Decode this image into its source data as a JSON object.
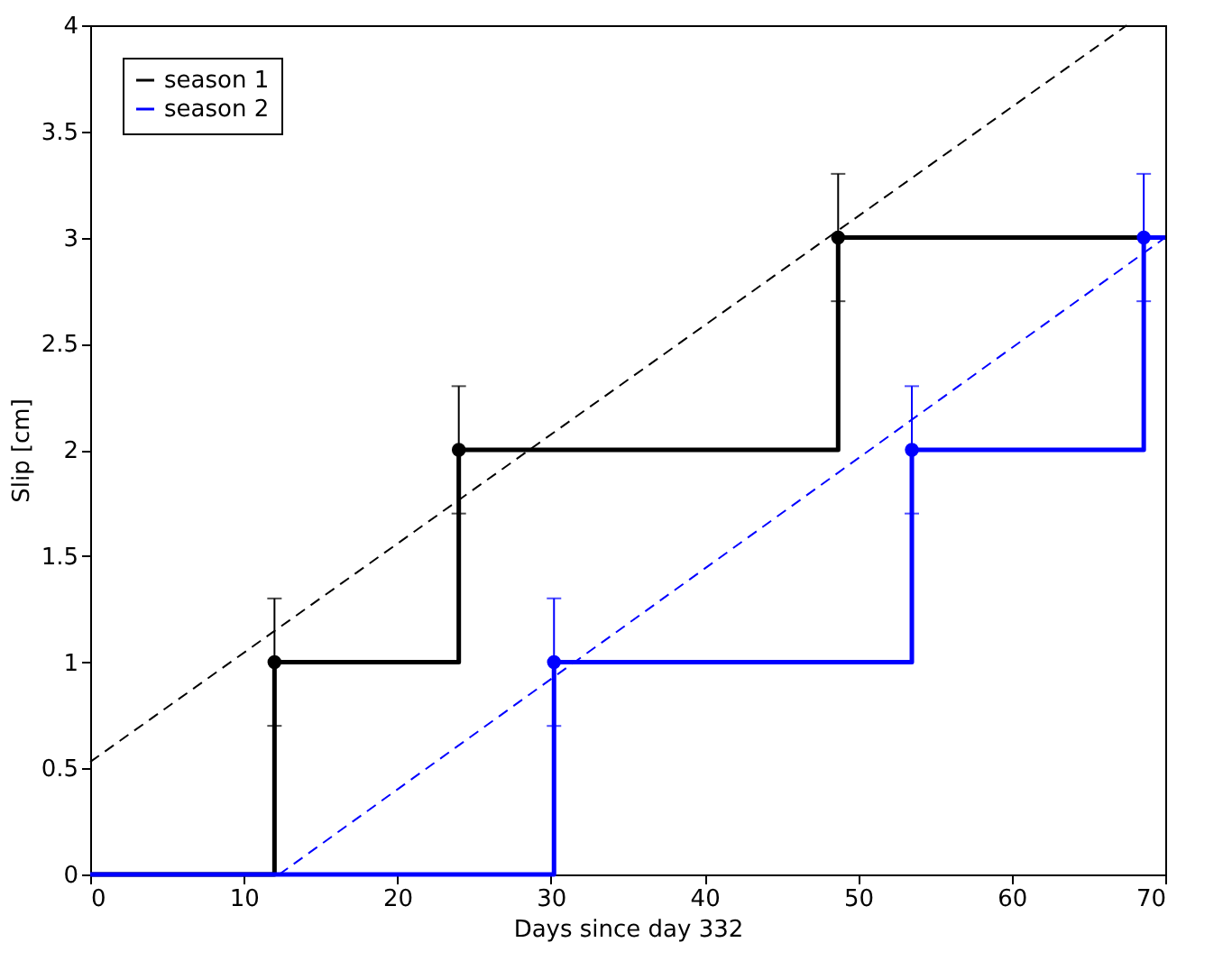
{
  "chart_data": {
    "type": "step",
    "xlabel": "Days since day 332",
    "ylabel": "Slip [cm]",
    "xlim": [
      0,
      70
    ],
    "ylim": [
      0,
      4
    ],
    "xticks": [
      0,
      10,
      20,
      30,
      40,
      50,
      60,
      70
    ],
    "yticks": [
      0,
      0.5,
      1,
      1.5,
      2,
      2.5,
      3,
      3.5,
      4
    ],
    "grid": false,
    "legend": "top left",
    "marker": "none",
    "line_style": "solid",
    "series": [
      {
        "name": "season 1",
        "color": "#000000",
        "x": [
          0,
          12,
          24,
          48.7,
          70
        ],
        "values": [
          0,
          1,
          2,
          3,
          3
        ]
      },
      {
        "name": "season 2",
        "color": "#0000ff",
        "x": [
          0,
          30.2,
          53.5,
          68.6,
          70
        ],
        "values": [
          0,
          1,
          2,
          3,
          3
        ]
      },
      {
        "type": "scatter",
        "marker": "circle",
        "color": "#000000",
        "x": [
          12,
          24,
          48.7
        ],
        "values": [
          1,
          2,
          3
        ],
        "errors": [
          0.3,
          0.3,
          0.3
        ]
      },
      {
        "type": "scatter",
        "marker": "circle",
        "color": "#0000ff",
        "x": [
          30.2,
          53.5,
          68.6
        ],
        "values": [
          1,
          2,
          3
        ],
        "errors": [
          0.3,
          0.3,
          0.3
        ]
      },
      {
        "type": "line",
        "line_style": "dashed",
        "color": "#000000",
        "x": [
          0,
          67.5
        ],
        "values": [
          0.53,
          4
        ]
      },
      {
        "type": "line",
        "line_style": "dashed",
        "color": "#0000ff",
        "x": [
          12.3,
          70
        ],
        "values": [
          0,
          3
        ]
      }
    ]
  }
}
